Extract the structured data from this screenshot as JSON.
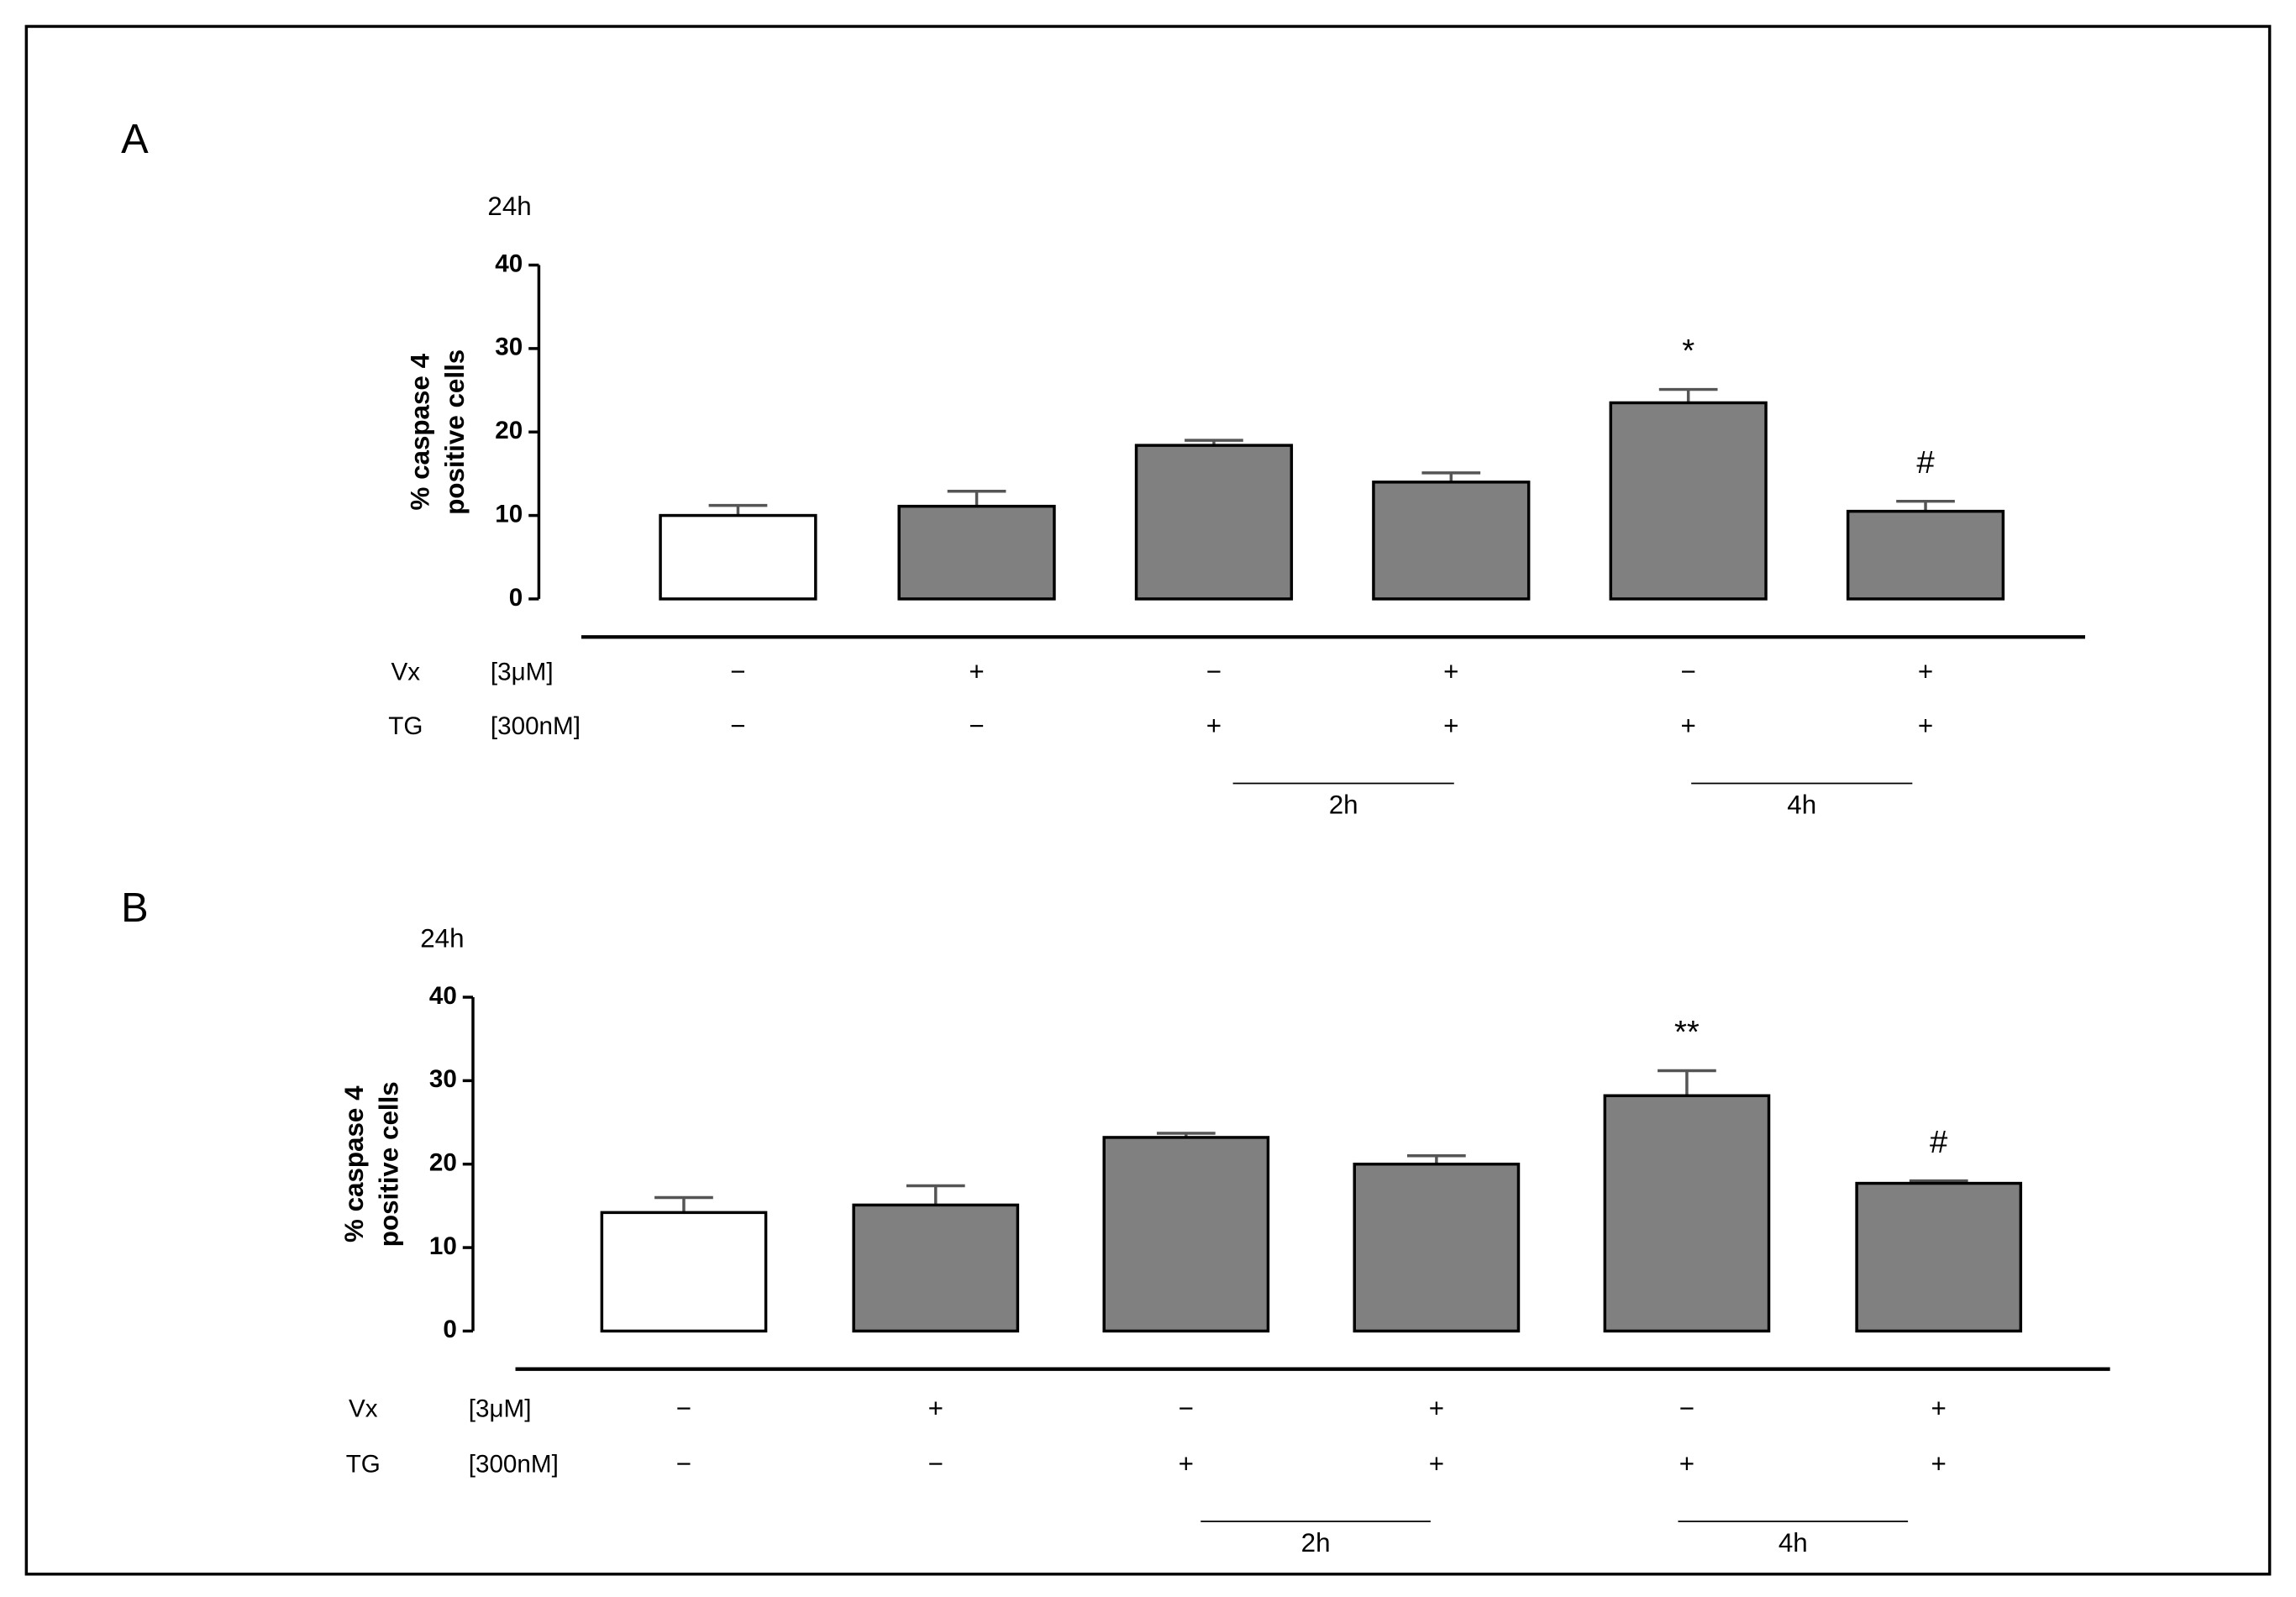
{
  "chart_data": [
    {
      "type": "bar",
      "panel": "A",
      "subtitle": "24h",
      "ylabel": [
        "% caspase 4",
        "positive cells"
      ],
      "ylim": [
        0,
        40
      ],
      "yticks": [
        0,
        10,
        20,
        30,
        40
      ],
      "values": [
        10,
        11.1,
        18.4,
        14,
        23.5,
        10.5
      ],
      "errors": [
        1.2,
        1.8,
        0.6,
        1.1,
        1.6,
        1.2
      ],
      "colors": [
        "#ffffff",
        "#808080",
        "#808080",
        "#808080",
        "#808080",
        "#808080"
      ],
      "annotations": [
        null,
        null,
        null,
        null,
        "*",
        "#"
      ],
      "conditions": [
        {
          "label": "Vx",
          "unit": "[3μM]",
          "signs": [
            "−",
            "+",
            "−",
            "+",
            "−",
            "+"
          ]
        },
        {
          "label": "TG",
          "unit": "[300nM]",
          "signs": [
            "−",
            "−",
            "+",
            "+",
            "+",
            "+"
          ]
        }
      ],
      "time_groups": [
        "2h",
        "4h"
      ]
    },
    {
      "type": "bar",
      "panel": "B",
      "subtitle": "24h",
      "ylabel": [
        "% caspase 4",
        "positive cells"
      ],
      "ylim": [
        0,
        40
      ],
      "yticks": [
        0,
        10,
        20,
        30,
        40
      ],
      "values": [
        14.2,
        15.1,
        23.2,
        20,
        28.2,
        17.7
      ],
      "errors": [
        1.8,
        2.3,
        0.5,
        1,
        3,
        0.3
      ],
      "colors": [
        "#ffffff",
        "#808080",
        "#808080",
        "#808080",
        "#808080",
        "#808080"
      ],
      "annotations": [
        null,
        null,
        null,
        null,
        "**",
        "#"
      ],
      "conditions": [
        {
          "label": "Vx",
          "unit": "[3μM]",
          "signs": [
            "−",
            "+",
            "−",
            "+",
            "−",
            "+"
          ]
        },
        {
          "label": "TG",
          "unit": "[300nM]",
          "signs": [
            "−",
            "−",
            "+",
            "+",
            "+",
            "+"
          ]
        }
      ],
      "time_groups": [
        "2h",
        "4h"
      ]
    }
  ]
}
